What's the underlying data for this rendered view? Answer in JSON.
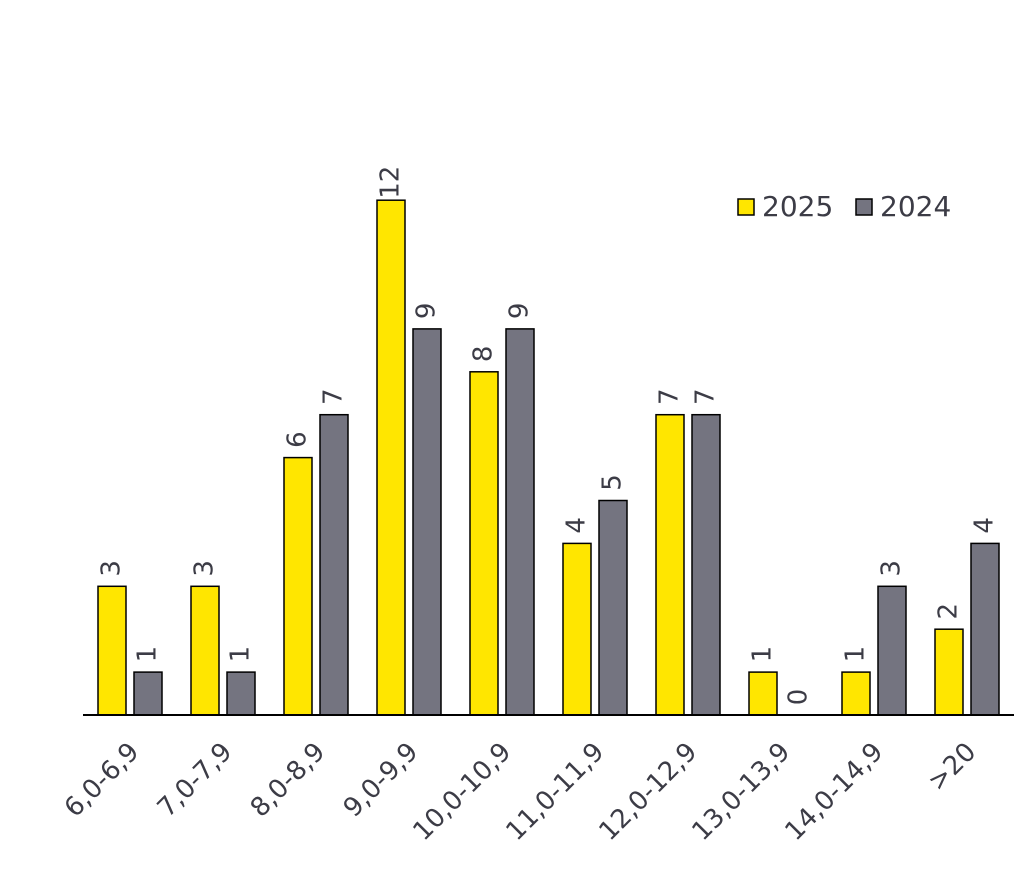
{
  "chart_data": {
    "type": "bar",
    "categories": [
      "6,0-6,9",
      "7,0-7,9",
      "8,0-8,9",
      "9,0-9,9",
      "10,0-10,9",
      "11,0-11,9",
      "12,0-12,9",
      "13,0-13,9",
      "14,0-14,9",
      ">20"
    ],
    "series": [
      {
        "name": "2025",
        "color": "#ffe600",
        "values": [
          3,
          3,
          6,
          12,
          8,
          4,
          7,
          1,
          1,
          2
        ]
      },
      {
        "name": "2024",
        "color": "#747480",
        "values": [
          1,
          1,
          7,
          9,
          9,
          5,
          7,
          0,
          3,
          4
        ]
      }
    ],
    "legend": "top-right"
  }
}
